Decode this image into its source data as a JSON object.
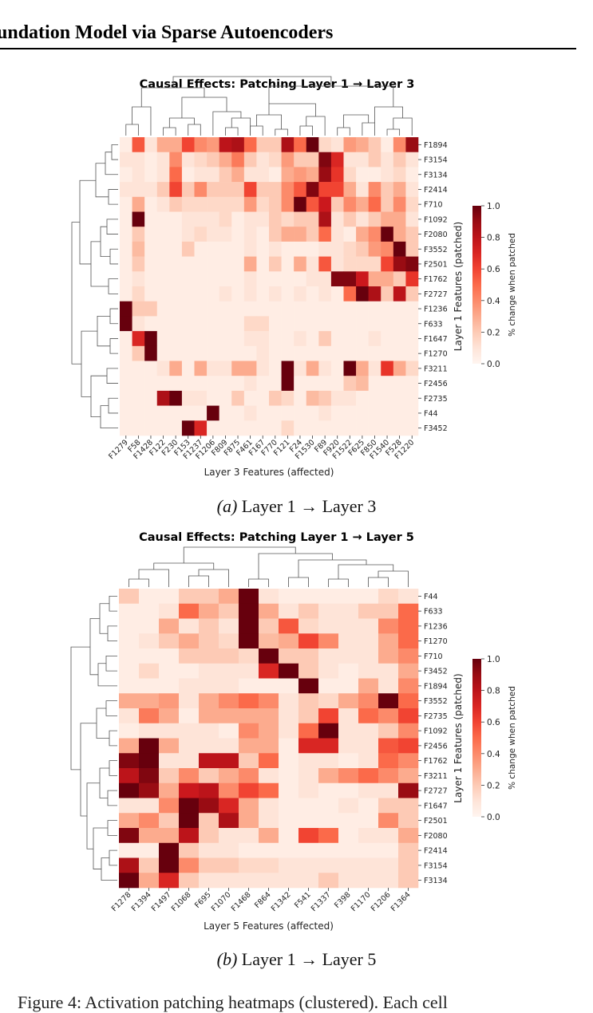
{
  "header": {
    "title": "undation Model via Sparse Autoencoders"
  },
  "figures": [
    {
      "caption": {
        "label": "(a)",
        "text": "Layer 1 → Layer 3"
      },
      "chart_data": {
        "type": "heatmap",
        "title": "Causal Effects: Patching Layer 1 → Layer 3",
        "xlabel": "Layer 3 Features (affected)",
        "ylabel": "Layer 1 Features (patched)",
        "colorbar": {
          "label": "% change when patched",
          "ticks": [
            "0.0",
            "0.2",
            "0.4",
            "0.6",
            "0.8",
            "1.0"
          ],
          "range": [
            0,
            1
          ]
        },
        "x": [
          "F1279",
          "F58",
          "F1428",
          "F122",
          "F230",
          "F153",
          "F1237",
          "F1206",
          "F809",
          "F875",
          "F461",
          "F167",
          "F770",
          "F121",
          "F24",
          "F1530",
          "F89",
          "F920",
          "F1522",
          "F625",
          "F850",
          "F1540",
          "F528",
          "F1220"
        ],
        "y": [
          "F1894",
          "F3154",
          "F3134",
          "F2414",
          "F710",
          "F1092",
          "F2080",
          "F3552",
          "F2501",
          "F1762",
          "F2727",
          "F1236",
          "F633",
          "F1647",
          "F1270",
          "F3211",
          "F2456",
          "F2735",
          "F44",
          "F3452"
        ],
        "values": [
          [
            0.05,
            0.55,
            0.1,
            0.3,
            0.3,
            0.6,
            0.4,
            0.35,
            0.8,
            0.85,
            0.5,
            0.2,
            0.2,
            0.85,
            0.5,
            1.0,
            0.15,
            0.1,
            0.35,
            0.3,
            0.2,
            0.05,
            0.4,
            0.9
          ],
          [
            0.1,
            0.1,
            0.05,
            0.1,
            0.4,
            0.1,
            0.15,
            0.2,
            0.3,
            0.45,
            0.2,
            0.1,
            0.15,
            0.35,
            0.2,
            0.2,
            0.95,
            0.7,
            0.1,
            0.1,
            0.2,
            0.1,
            0.2,
            0.1
          ],
          [
            0.05,
            0.1,
            0.05,
            0.1,
            0.5,
            0.05,
            0.1,
            0.1,
            0.2,
            0.3,
            0.1,
            0.1,
            0.05,
            0.3,
            0.35,
            0.3,
            0.9,
            0.65,
            0.15,
            0.05,
            0.05,
            0.1,
            0.15,
            0.05
          ],
          [
            0.1,
            0.1,
            0.1,
            0.2,
            0.6,
            0.2,
            0.4,
            0.2,
            0.2,
            0.2,
            0.6,
            0.2,
            0.2,
            0.4,
            0.55,
            0.95,
            0.6,
            0.6,
            0.3,
            0.1,
            0.4,
            0.2,
            0.3,
            0.1
          ],
          [
            0.05,
            0.3,
            0.05,
            0.1,
            0.2,
            0.15,
            0.15,
            0.15,
            0.15,
            0.15,
            0.35,
            0.15,
            0.2,
            0.4,
            1.0,
            0.55,
            0.75,
            0.2,
            0.4,
            0.3,
            0.5,
            0.2,
            0.4,
            0.15
          ],
          [
            0.05,
            1.0,
            0.05,
            0.05,
            0.05,
            0.1,
            0.1,
            0.1,
            0.15,
            0.05,
            0.1,
            0.1,
            0.2,
            0.15,
            0.2,
            0.2,
            0.85,
            0.1,
            0.2,
            0.1,
            0.2,
            0.3,
            0.3,
            0.1
          ],
          [
            0.05,
            0.2,
            0.05,
            0.05,
            0.05,
            0.1,
            0.15,
            0.1,
            0.1,
            0.05,
            0.1,
            0.05,
            0.2,
            0.3,
            0.3,
            0.2,
            0.5,
            0.1,
            0.05,
            0.3,
            0.4,
            1.0,
            0.3,
            0.2
          ],
          [
            0.05,
            0.25,
            0.05,
            0.05,
            0.05,
            0.2,
            0.05,
            0.05,
            0.05,
            0.05,
            0.1,
            0.05,
            0.1,
            0.05,
            0.05,
            0.05,
            0.1,
            0.1,
            0.15,
            0.2,
            0.35,
            0.4,
            1.0,
            0.2
          ],
          [
            0.05,
            0.2,
            0.05,
            0.05,
            0.05,
            0.05,
            0.05,
            0.05,
            0.05,
            0.05,
            0.3,
            0.05,
            0.2,
            0.05,
            0.3,
            0.1,
            0.55,
            0.1,
            0.15,
            0.15,
            0.15,
            0.6,
            0.9,
            0.95
          ],
          [
            0.05,
            0.1,
            0.05,
            0.05,
            0.05,
            0.05,
            0.05,
            0.05,
            0.05,
            0.05,
            0.1,
            0.05,
            0.05,
            0.05,
            0.05,
            0.1,
            0.1,
            0.95,
            0.95,
            0.75,
            0.3,
            0.3,
            0.2,
            0.65
          ],
          [
            0.05,
            0.15,
            0.05,
            0.05,
            0.05,
            0.05,
            0.05,
            0.05,
            0.1,
            0.05,
            0.1,
            0.05,
            0.1,
            0.05,
            0.1,
            0.05,
            0.1,
            0.05,
            0.5,
            1.0,
            0.85,
            0.2,
            0.8,
            0.2
          ],
          [
            1.0,
            0.2,
            0.2,
            0.05,
            0.05,
            0.05,
            0.05,
            0.05,
            0.05,
            0.05,
            0.05,
            0.05,
            0.05,
            0.05,
            0.05,
            0.05,
            0.05,
            0.05,
            0.05,
            0.05,
            0.05,
            0.05,
            0.05,
            0.05
          ],
          [
            1.0,
            0.1,
            0.05,
            0.05,
            0.05,
            0.05,
            0.05,
            0.05,
            0.05,
            0.05,
            0.15,
            0.15,
            0.05,
            0.05,
            0.05,
            0.05,
            0.05,
            0.05,
            0.05,
            0.05,
            0.05,
            0.05,
            0.05,
            0.05
          ],
          [
            0.05,
            0.7,
            1.0,
            0.05,
            0.05,
            0.05,
            0.05,
            0.05,
            0.05,
            0.05,
            0.1,
            0.1,
            0.05,
            0.05,
            0.1,
            0.05,
            0.2,
            0.05,
            0.05,
            0.05,
            0.1,
            0.05,
            0.05,
            0.05
          ],
          [
            0.05,
            0.2,
            1.0,
            0.05,
            0.05,
            0.05,
            0.05,
            0.05,
            0.05,
            0.05,
            0.05,
            0.1,
            0.05,
            0.05,
            0.05,
            0.05,
            0.05,
            0.05,
            0.05,
            0.05,
            0.05,
            0.05,
            0.05,
            0.05
          ],
          [
            0.05,
            0.05,
            0.05,
            0.1,
            0.3,
            0.05,
            0.3,
            0.1,
            0.1,
            0.3,
            0.3,
            0.1,
            0.05,
            1.0,
            0.1,
            0.3,
            0.1,
            0.05,
            1.0,
            0.3,
            0.1,
            0.65,
            0.3,
            0.15
          ],
          [
            0.05,
            0.05,
            0.05,
            0.05,
            0.05,
            0.05,
            0.05,
            0.05,
            0.05,
            0.05,
            0.1,
            0.05,
            0.05,
            1.0,
            0.05,
            0.05,
            0.05,
            0.05,
            0.2,
            0.25,
            0.05,
            0.05,
            0.05,
            0.05
          ],
          [
            0.05,
            0.05,
            0.05,
            0.85,
            1.0,
            0.1,
            0.1,
            0.05,
            0.05,
            0.2,
            0.05,
            0.05,
            0.2,
            0.15,
            0.05,
            0.25,
            0.2,
            0.1,
            0.1,
            0.05,
            0.05,
            0.05,
            0.05,
            0.05
          ],
          [
            0.05,
            0.05,
            0.05,
            0.05,
            0.05,
            0.05,
            0.05,
            1.0,
            0.05,
            0.05,
            0.1,
            0.05,
            0.05,
            0.05,
            0.05,
            0.05,
            0.1,
            0.05,
            0.05,
            0.05,
            0.05,
            0.05,
            0.05,
            0.05
          ],
          [
            0.05,
            0.05,
            0.05,
            0.05,
            0.05,
            1.0,
            0.7,
            0.05,
            0.05,
            0.05,
            0.05,
            0.05,
            0.05,
            0.15,
            0.05,
            0.05,
            0.05,
            0.05,
            0.05,
            0.05,
            0.05,
            0.05,
            0.05,
            0.05
          ]
        ]
      }
    },
    {
      "caption": {
        "label": "(b)",
        "text": "Layer 1 → Layer 5"
      },
      "chart_data": {
        "type": "heatmap",
        "title": "Causal Effects: Patching Layer 1 → Layer 5",
        "xlabel": "Layer 5 Features (affected)",
        "ylabel": "Layer 1 Features (patched)",
        "colorbar": {
          "label": "% change when patched",
          "ticks": [
            "0.0",
            "0.2",
            "0.4",
            "0.6",
            "0.8",
            "1.0"
          ],
          "range": [
            0,
            1
          ]
        },
        "x": [
          "F1278",
          "F1394",
          "F1497",
          "F1068",
          "F695",
          "F1070",
          "F1468",
          "F864",
          "F1342",
          "F541",
          "F1337",
          "F398",
          "F1170",
          "F1206",
          "F1364"
        ],
        "y": [
          "F44",
          "F633",
          "F1236",
          "F1270",
          "F710",
          "F3452",
          "F1894",
          "F3552",
          "F2735",
          "F1092",
          "F2456",
          "F1762",
          "F3211",
          "F2727",
          "F1647",
          "F2501",
          "F2080",
          "F2414",
          "F3154",
          "F3134"
        ],
        "values": [
          [
            0.2,
            0.05,
            0.05,
            0.2,
            0.2,
            0.3,
            1.0,
            0.1,
            0.05,
            0.05,
            0.05,
            0.05,
            0.05,
            0.15,
            0.1
          ],
          [
            0.05,
            0.05,
            0.1,
            0.5,
            0.3,
            0.2,
            1.0,
            0.3,
            0.1,
            0.2,
            0.1,
            0.1,
            0.2,
            0.2,
            0.5
          ],
          [
            0.05,
            0.05,
            0.3,
            0.1,
            0.2,
            0.1,
            1.0,
            0.2,
            0.55,
            0.15,
            0.1,
            0.1,
            0.1,
            0.4,
            0.5
          ],
          [
            0.05,
            0.1,
            0.2,
            0.3,
            0.2,
            0.15,
            1.0,
            0.25,
            0.3,
            0.6,
            0.4,
            0.1,
            0.1,
            0.3,
            0.5
          ],
          [
            0.05,
            0.05,
            0.05,
            0.2,
            0.2,
            0.2,
            0.15,
            1.0,
            0.2,
            0.2,
            0.1,
            0.1,
            0.1,
            0.3,
            0.4
          ],
          [
            0.05,
            0.15,
            0.05,
            0.05,
            0.1,
            0.1,
            0.1,
            0.7,
            1.0,
            0.2,
            0.1,
            0.05,
            0.1,
            0.1,
            0.3
          ],
          [
            0.05,
            0.05,
            0.05,
            0.1,
            0.1,
            0.1,
            0.05,
            0.05,
            0.05,
            1.0,
            0.05,
            0.05,
            0.3,
            0.1,
            0.4
          ],
          [
            0.3,
            0.3,
            0.35,
            0.1,
            0.3,
            0.4,
            0.5,
            0.4,
            0.1,
            0.2,
            0.15,
            0.3,
            0.4,
            1.0,
            0.5
          ],
          [
            0.1,
            0.45,
            0.3,
            0.05,
            0.3,
            0.3,
            0.3,
            0.3,
            0.1,
            0.2,
            0.6,
            0.1,
            0.5,
            0.4,
            0.6
          ],
          [
            0.05,
            0.1,
            0.1,
            0.1,
            0.1,
            0.05,
            0.4,
            0.3,
            0.1,
            0.5,
            1.0,
            0.1,
            0.1,
            0.2,
            0.4
          ],
          [
            0.3,
            1.0,
            0.3,
            0.1,
            0.1,
            0.1,
            0.3,
            0.3,
            0.05,
            0.7,
            0.7,
            0.1,
            0.1,
            0.55,
            0.6
          ],
          [
            0.95,
            1.0,
            0.1,
            0.1,
            0.8,
            0.8,
            0.2,
            0.5,
            0.05,
            0.1,
            0.1,
            0.05,
            0.1,
            0.5,
            0.4
          ],
          [
            0.8,
            0.95,
            0.2,
            0.4,
            0.2,
            0.3,
            0.4,
            0.1,
            0.05,
            0.1,
            0.3,
            0.4,
            0.5,
            0.4,
            0.3
          ],
          [
            1.0,
            0.9,
            0.3,
            0.75,
            0.8,
            0.4,
            0.6,
            0.5,
            0.05,
            0.1,
            0.05,
            0.05,
            0.1,
            0.1,
            0.9
          ],
          [
            0.1,
            0.1,
            0.4,
            1.0,
            0.9,
            0.7,
            0.3,
            0.1,
            0.05,
            0.05,
            0.05,
            0.1,
            0.05,
            0.2,
            0.2
          ],
          [
            0.3,
            0.4,
            0.2,
            1.0,
            0.2,
            0.85,
            0.3,
            0.1,
            0.05,
            0.05,
            0.05,
            0.05,
            0.05,
            0.4,
            0.2
          ],
          [
            0.95,
            0.3,
            0.3,
            0.8,
            0.2,
            0.1,
            0.1,
            0.3,
            0.05,
            0.6,
            0.5,
            0.05,
            0.1,
            0.1,
            0.3
          ],
          [
            0.05,
            0.05,
            1.0,
            0.2,
            0.1,
            0.1,
            0.05,
            0.05,
            0.05,
            0.05,
            0.05,
            0.05,
            0.05,
            0.05,
            0.2
          ],
          [
            0.85,
            0.2,
            1.0,
            0.4,
            0.2,
            0.2,
            0.15,
            0.15,
            0.1,
            0.1,
            0.1,
            0.1,
            0.1,
            0.1,
            0.2
          ],
          [
            1.0,
            0.3,
            0.7,
            0.2,
            0.1,
            0.1,
            0.1,
            0.1,
            0.1,
            0.1,
            0.2,
            0.1,
            0.1,
            0.1,
            0.2
          ]
        ]
      }
    }
  ],
  "bottom_text": "Figure 4: Activation patching heatmaps (clustered). Each cell"
}
